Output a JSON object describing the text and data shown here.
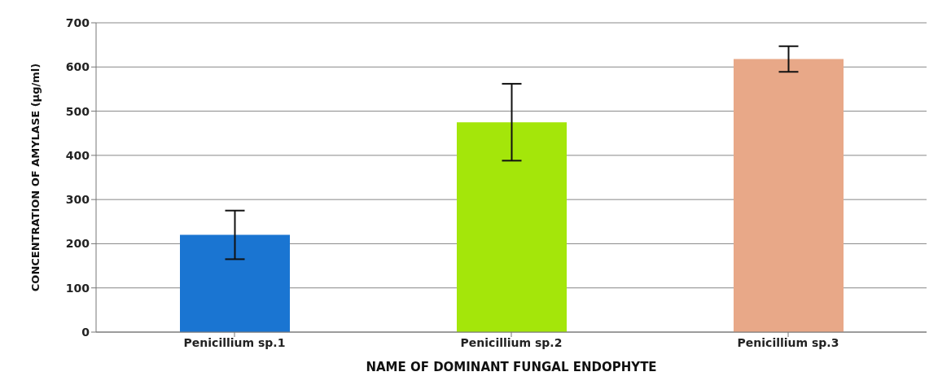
{
  "chart_data": {
    "type": "bar",
    "xlabel": "NAME OF DOMINANT FUNGAL ENDOPHYTE",
    "ylabel": "CONCENTRATION OF AMYLASE (µg/ml)",
    "categories": [
      "Penicillium sp.1",
      "Penicillium sp.2",
      "Penicillium sp.3"
    ],
    "values": [
      220,
      475,
      618
    ],
    "errors": [
      55,
      87,
      29
    ],
    "colors": [
      "#1a75d2",
      "#a4e60a",
      "#e8a888"
    ],
    "ylim": [
      0,
      700
    ],
    "yticks": [
      0,
      100,
      200,
      300,
      400,
      500,
      600,
      700
    ],
    "grid": "y"
  }
}
